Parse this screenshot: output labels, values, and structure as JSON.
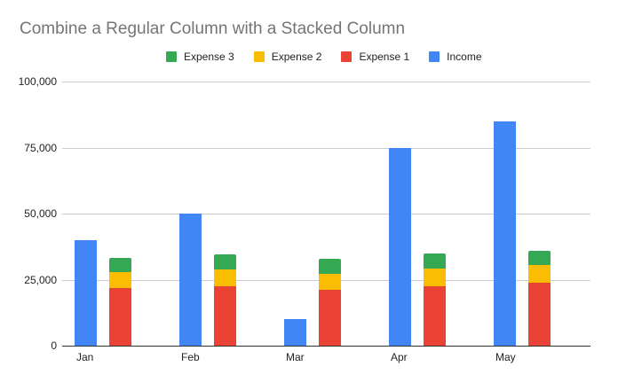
{
  "chart_data": {
    "type": "bar",
    "title": "Combine a Regular Column with a Stacked Column",
    "xlabel": "",
    "ylabel": "",
    "ylim": [
      0,
      100000
    ],
    "yticks": [
      "0",
      "25,000",
      "50,000",
      "75,000",
      "100,000"
    ],
    "ytick_values": [
      0,
      25000,
      50000,
      75000,
      100000
    ],
    "grid": true,
    "legend_position": "top",
    "categories": [
      "Jan",
      "Feb",
      "Mar",
      "Apr",
      "May"
    ],
    "series": [
      {
        "name": "Income",
        "color": "#4285f4",
        "stack": "regular",
        "values": [
          40000,
          50000,
          10000,
          75000,
          85000
        ]
      },
      {
        "name": "Expense 1",
        "color": "#ea4335",
        "stack": "stacked",
        "values": [
          21700,
          22600,
          21250,
          22600,
          23900
        ]
      },
      {
        "name": "Expense 2",
        "color": "#fbbc04",
        "stack": "stacked",
        "values": [
          6250,
          6250,
          5950,
          6600,
          6500
        ]
      },
      {
        "name": "Expense 3",
        "color": "#34a853",
        "stack": "stacked",
        "values": [
          5350,
          5600,
          5700,
          5600,
          5400
        ]
      }
    ]
  },
  "legend": {
    "items": [
      {
        "label": "Expense 3",
        "color": "#34a853"
      },
      {
        "label": "Expense 2",
        "color": "#fbbc04"
      },
      {
        "label": "Expense 1",
        "color": "#ea4335"
      },
      {
        "label": "Income",
        "color": "#4285f4"
      }
    ]
  }
}
